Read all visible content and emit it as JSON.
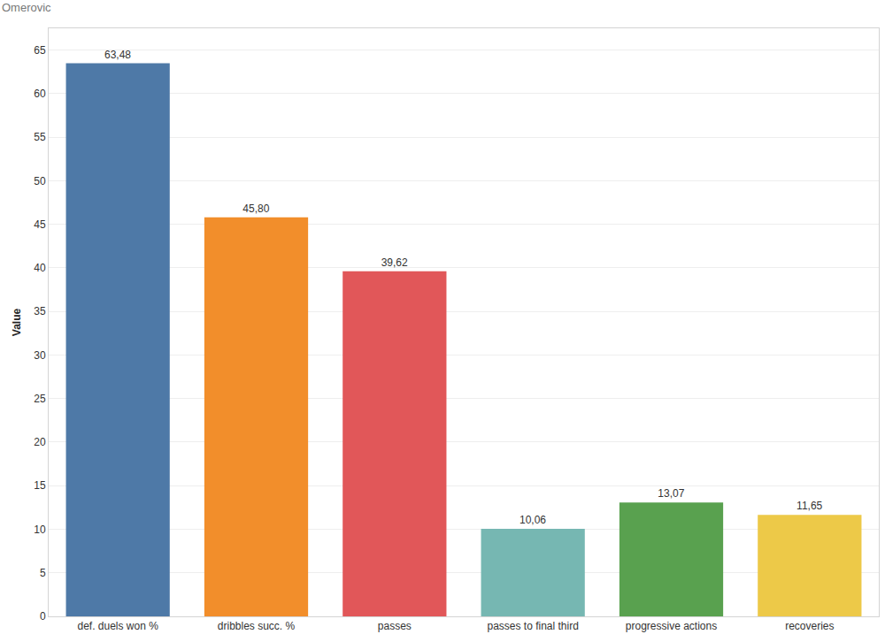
{
  "chart_data": {
    "type": "bar",
    "title": "Omerovic",
    "y_label": "Value",
    "categories": [
      "def. duels won %",
      "dribbles succ. %",
      "passes",
      "passes to final third",
      "progressive actions",
      "recoveries"
    ],
    "values": [
      63.48,
      45.8,
      39.62,
      10.06,
      13.07,
      11.65
    ],
    "value_labels": [
      "63,48",
      "45,80",
      "39,62",
      "10,06",
      "13,07",
      "11,65"
    ],
    "colors": [
      "#4e79a7",
      "#f28e2b",
      "#e15759",
      "#76b7b2",
      "#59a14f",
      "#edc948"
    ],
    "ylim": [
      0,
      67.5
    ],
    "yticks": [
      0,
      5,
      10,
      15,
      20,
      25,
      30,
      35,
      40,
      45,
      50,
      55,
      60,
      65
    ],
    "grid": true,
    "data_labels": true
  }
}
